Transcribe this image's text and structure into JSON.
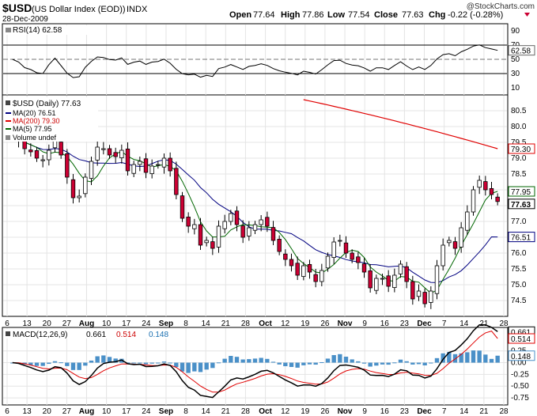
{
  "header": {
    "symbol": "$USD",
    "name": "(US Dollar Index (EOD))",
    "exchange": "INDX",
    "date": "28-Dec-2009",
    "open_label": "Open",
    "open": "77.64",
    "high_label": "High",
    "high": "77.86",
    "low_label": "Low",
    "low": "77.54",
    "close_label": "Close",
    "close": "77.63",
    "chg_label": "Chg",
    "chg": "-0.22 (-0.28%)",
    "copyright": "@StockCharts.com"
  },
  "colors": {
    "up": "#ffffff",
    "down": "#cc0033",
    "ma20": "#000080",
    "ma200": "#e00000",
    "ma5": "#006600",
    "macd_line": "#000000",
    "signal_line": "#e00000",
    "histogram": "#4a90c8",
    "grid": "#e4e4e4"
  },
  "rsi": {
    "legend": "RSI(14) 62.58",
    "value_tag": "62.58",
    "ticks": [
      "90",
      "70",
      "50",
      "30",
      "10"
    ]
  },
  "price": {
    "legend_title": "$USD (Daily) 77.63",
    "legend_ma20": "MA(20) 76.51",
    "legend_ma200": "MA(200) 79.30",
    "legend_ma5": "MA(5) 77.95",
    "legend_volume": "Volume undef",
    "tags": {
      "ma200": "79.30",
      "ma5": "77.95",
      "close": "77.63",
      "ma20": "76.51"
    },
    "ticks": [
      "80.5",
      "80.0",
      "79.5",
      "79.0",
      "78.5",
      "78.0",
      "77.5",
      "77.0",
      "76.5",
      "76.0",
      "75.5",
      "75.0",
      "74.5"
    ]
  },
  "macd": {
    "legend_label": "MACD(12,26,9)",
    "legend_macd": "0.661",
    "legend_signal": "0.514",
    "legend_hist": "0.148",
    "tags": {
      "macd": "0.661",
      "signal": "0.514",
      "hist": "0.148"
    },
    "ticks": [
      "0.25",
      "0.00",
      "-0.25",
      "-0.50",
      "-0.75"
    ]
  },
  "x_axis": {
    "labels": [
      "6",
      "13",
      "20",
      "27",
      "Aug",
      "10",
      "17",
      "24",
      "Sep",
      "8",
      "14",
      "21",
      "28",
      "Oct",
      "12",
      "19",
      "26",
      "Nov",
      "9",
      "16",
      "23",
      "Dec",
      "7",
      "14",
      "21",
      "28"
    ],
    "bold": [
      "Aug",
      "Sep",
      "Oct",
      "Nov",
      "Dec"
    ]
  },
  "chart_data": {
    "type": "candlestick",
    "title": "$USD (US Dollar Index (EOD)) INDX",
    "date": "28-Dec-2009",
    "ylim": [
      74.0,
      81.0
    ],
    "closes": [
      79.65,
      79.55,
      79.3,
      79.2,
      79.0,
      78.95,
      79.25,
      79.55,
      79.1,
      78.4,
      77.75,
      77.8,
      78.4,
      78.9,
      79.35,
      79.3,
      79.1,
      79.05,
      79.25,
      78.6,
      78.8,
      78.9,
      78.55,
      78.75,
      78.8,
      79.0,
      78.6,
      77.85,
      77.1,
      76.85,
      76.9,
      76.25,
      76.4,
      76.15,
      76.85,
      77.0,
      77.25,
      76.9,
      76.5,
      76.8,
      76.9,
      77.05,
      76.85,
      76.4,
      76.05,
      75.8,
      75.6,
      75.3,
      75.6,
      75.4,
      75.1,
      75.45,
      75.9,
      76.35,
      76.4,
      76.0,
      75.8,
      75.7,
      75.4,
      74.9,
      75.2,
      75.2,
      74.95,
      75.3,
      75.65,
      75.1,
      74.55,
      74.8,
      74.4,
      74.8,
      75.6,
      76.25,
      76.4,
      76.15,
      76.8,
      77.3,
      78.0,
      78.3,
      78.0,
      77.85,
      77.63
    ],
    "ma20_final": 76.51,
    "ma200_final": 79.3,
    "ma5_final": 77.95,
    "rsi_final": 62.58,
    "macd_final": 0.661,
    "signal_final": 0.514,
    "hist_final": 0.148,
    "rsi_ylim": [
      0,
      100
    ],
    "macd_ylim": [
      -0.9,
      0.75
    ]
  }
}
